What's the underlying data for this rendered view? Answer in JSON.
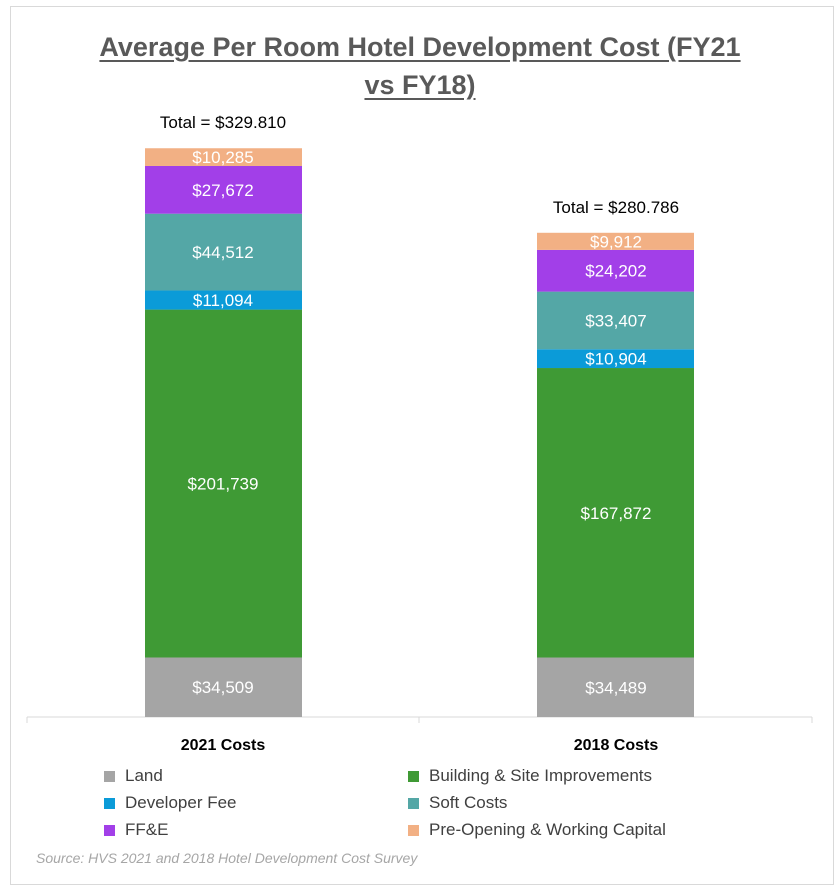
{
  "chart_data": {
    "type": "bar",
    "stacked": true,
    "title_line1": "Average Per Room Hotel Development Cost (FY21",
    "title_line2": "vs FY18)",
    "categories": [
      "2021 Costs",
      "2018 Costs"
    ],
    "totals": [
      "Total = $329.810",
      "Total = $280.786"
    ],
    "series": [
      {
        "name": "Land",
        "color": "#a5a5a5",
        "values": [
          34509,
          34489
        ],
        "labels": [
          "$34,509",
          "$34,489"
        ]
      },
      {
        "name": "Building & Site Improvements",
        "color": "#3f9a35",
        "values": [
          201739,
          167872
        ],
        "labels": [
          "$201,739",
          "$167,872"
        ]
      },
      {
        "name": "Developer Fee",
        "color": "#0b9bd8",
        "values": [
          11094,
          10904
        ],
        "labels": [
          "$11,094",
          "$10,904"
        ]
      },
      {
        "name": "Soft Costs",
        "color": "#54a7a6",
        "values": [
          44512,
          33407
        ],
        "labels": [
          "$44,512",
          "$33,407"
        ]
      },
      {
        "name": "FF&E",
        "color": "#a23fe8",
        "values": [
          27672,
          24202
        ],
        "labels": [
          "$27,672",
          "$24,202"
        ]
      },
      {
        "name": "Pre-Opening & Working Capital",
        "color": "#f2b084",
        "values": [
          10285,
          9912
        ],
        "labels": [
          "$10,285",
          "$9,912"
        ]
      }
    ],
    "legend_position": "bottom",
    "grid": false
  },
  "source": "Source: HVS 2021 and 2018 Hotel Development Cost Survey"
}
